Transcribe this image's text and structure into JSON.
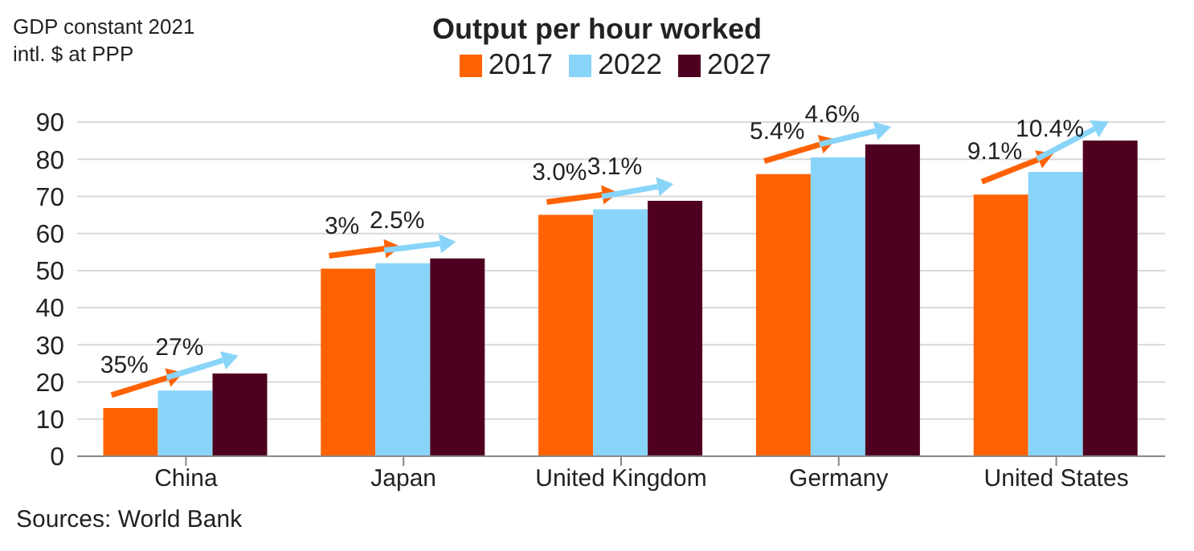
{
  "chart_data": {
    "type": "bar",
    "title": "Output per hour worked",
    "ylabel": "GDP constant 2021\nintl. $ at PPP",
    "categories": [
      "China",
      "Japan",
      "United Kingdom",
      "Germany",
      "United States"
    ],
    "series": [
      {
        "name": "2017",
        "color": "#ff6200",
        "values": [
          13,
          50.5,
          65,
          76,
          70.5
        ]
      },
      {
        "name": "2022",
        "color": "#89d4f9",
        "values": [
          17.7,
          52,
          66.5,
          80.5,
          76.6
        ]
      },
      {
        "name": "2027",
        "color": "#4f0021",
        "values": [
          22.3,
          53.3,
          68.8,
          84,
          85
        ]
      }
    ],
    "ylim": [
      0,
      90
    ],
    "yticks": [
      0,
      10,
      20,
      30,
      40,
      50,
      60,
      70,
      80,
      90
    ],
    "grid": "y",
    "legend": "top",
    "annotations": [
      "35%",
      "27%",
      "3%",
      "2.5%",
      "3.0%",
      "3.1%",
      "5.4%",
      "4.6%",
      "9.1%",
      "10.4%",
      "Sources: World Bank"
    ]
  }
}
